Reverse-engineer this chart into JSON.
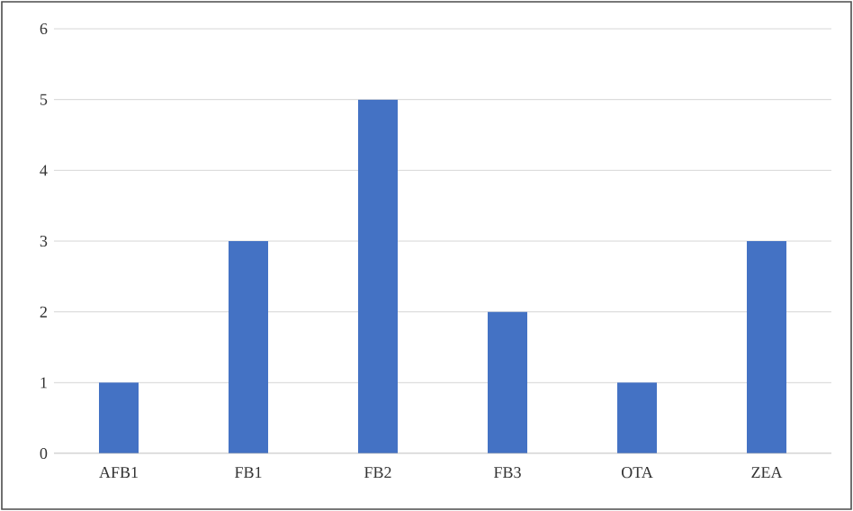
{
  "chart_data": {
    "type": "bar",
    "categories": [
      "AFB1",
      "FB1",
      "FB2",
      "FB3",
      "OTA",
      "ZEA"
    ],
    "values": [
      1,
      3,
      5,
      2,
      1,
      3
    ],
    "color": "#4472c4",
    "ylim": [
      0,
      6
    ],
    "yticks": [
      0,
      1,
      2,
      3,
      4,
      5,
      6
    ],
    "grid": "y"
  }
}
